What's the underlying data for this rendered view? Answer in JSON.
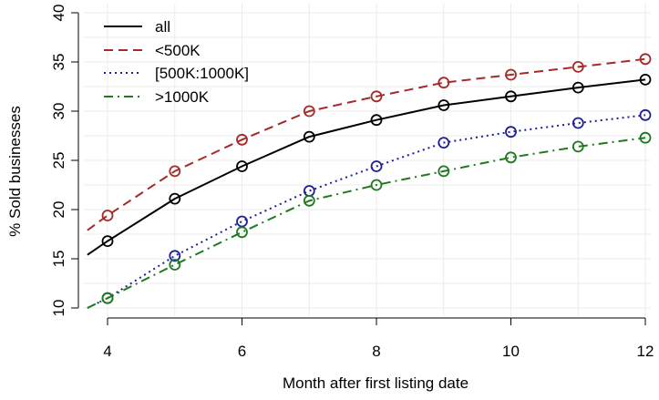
{
  "chart_data": {
    "type": "line",
    "xlabel": "Month after first listing date",
    "ylabel": "% Sold businesses",
    "xlim": [
      3.7,
      12.1
    ],
    "ylim": [
      10,
      40.5
    ],
    "x_ticks": [
      4,
      6,
      8,
      10,
      12
    ],
    "y_ticks": [
      10,
      15,
      20,
      25,
      30,
      35,
      40
    ],
    "grid": true,
    "legend_position": "top-left",
    "series": [
      {
        "name": "all",
        "color": "#000000",
        "dash": "solid",
        "x": [
          3.7,
          4,
          5,
          6,
          7,
          8,
          9,
          10,
          11,
          12
        ],
        "y": [
          15.4,
          16.8,
          21.1,
          24.4,
          27.4,
          29.1,
          30.6,
          31.5,
          32.4,
          33.2
        ],
        "marker_x": [
          4,
          5,
          6,
          7,
          8,
          9,
          10,
          11,
          12
        ]
      },
      {
        "name": "<500K",
        "color": "#a52a2a",
        "dash": "dashed",
        "x": [
          3.7,
          4,
          5,
          6,
          7,
          8,
          9,
          10,
          11,
          12
        ],
        "y": [
          17.9,
          19.4,
          23.9,
          27.1,
          30.0,
          31.5,
          32.9,
          33.7,
          34.5,
          35.3
        ],
        "marker_x": [
          4,
          5,
          6,
          7,
          8,
          9,
          10,
          11,
          12
        ]
      },
      {
        "name": "[500K:1000K]",
        "color": "#1f1f9a",
        "dash": "dotted",
        "x": [
          3.7,
          4,
          5,
          6,
          7,
          8,
          9,
          10,
          11,
          12
        ],
        "y": [
          10.0,
          11.0,
          15.3,
          18.8,
          21.9,
          24.4,
          26.8,
          27.9,
          28.8,
          29.6
        ],
        "marker_x": [
          4,
          5,
          6,
          7,
          8,
          9,
          10,
          11,
          12
        ]
      },
      {
        "name": ">1000K",
        "color": "#1f7a1f",
        "dash": "dashdot",
        "x": [
          3.7,
          4,
          5,
          6,
          7,
          8,
          9,
          10,
          11,
          12
        ],
        "y": [
          10.0,
          11.0,
          14.4,
          17.7,
          20.9,
          22.5,
          23.9,
          25.3,
          26.4,
          27.3
        ],
        "marker_x": [
          4,
          5,
          6,
          7,
          8,
          9,
          10,
          11,
          12
        ]
      }
    ]
  }
}
